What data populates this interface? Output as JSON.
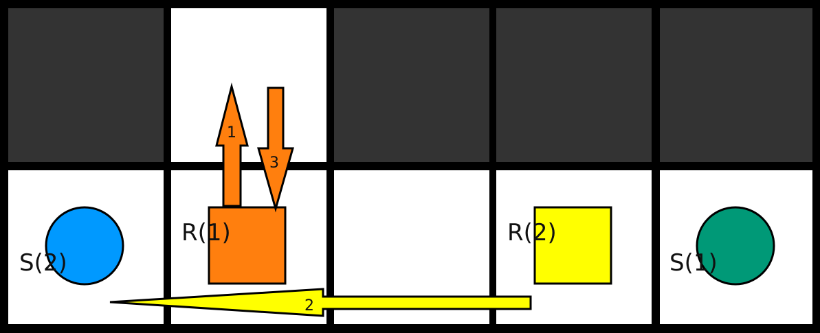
{
  "colors": {
    "wall": "#333333",
    "floor": "#ffffff",
    "grid": "#000000",
    "robot1": "#ff7f0e",
    "robot2": "#ffff00",
    "station2": "#0099ff",
    "station1": "#009977",
    "outline": "#000000"
  },
  "grid": {
    "rows": 2,
    "cols": 5,
    "cells": [
      [
        "wall",
        "floor",
        "wall",
        "wall",
        "wall"
      ],
      [
        "floor",
        "floor",
        "floor",
        "floor",
        "floor"
      ]
    ]
  },
  "stations": [
    {
      "id": "s2",
      "label": "S(2)",
      "row": 1,
      "col": 0,
      "color_key": "station2"
    },
    {
      "id": "s1",
      "label": "S(1)",
      "row": 1,
      "col": 4,
      "color_key": "station1"
    }
  ],
  "robots": [
    {
      "id": "r1",
      "label": "R(1)",
      "row": 1,
      "col": 1,
      "color_key": "robot1"
    },
    {
      "id": "r2",
      "label": "R(2)",
      "row": 1,
      "col": 3,
      "color_key": "robot2"
    }
  ],
  "moves": [
    {
      "step": "1",
      "robot": "r1",
      "direction": "up"
    },
    {
      "step": "2",
      "robot": "r2",
      "direction": "left"
    },
    {
      "step": "3",
      "robot": "r1",
      "direction": "down"
    }
  ]
}
